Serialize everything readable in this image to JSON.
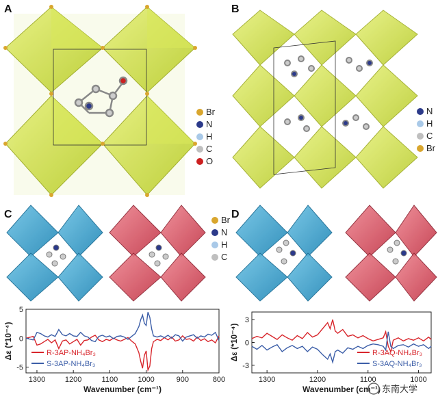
{
  "panels": {
    "A": {
      "label": "A",
      "legend": [
        "Br",
        "N",
        "H",
        "C",
        "O"
      ]
    },
    "B": {
      "label": "B",
      "legend": [
        "N",
        "H",
        "C",
        "Br"
      ]
    },
    "C": {
      "label": "C",
      "legend": [
        "Br",
        "N",
        "H",
        "C"
      ]
    },
    "D": {
      "label": "D"
    }
  },
  "colors": {
    "Br": "#d9a62e",
    "N": "#2c3a8a",
    "H": "#a9c9e8",
    "C": "#bfbfbf",
    "O": "#cc2020",
    "yellow_oct": "#cfe04a",
    "blue_oct": "#3aa3cf",
    "red_oct": "#d94a5a",
    "r_series": "#d8262c",
    "s_series": "#3c5ea8"
  },
  "watermark": "东南大学",
  "chart_data": [
    {
      "type": "line",
      "panel": "C",
      "xlabel": "Wavenumber (cm⁻¹)",
      "ylabel": "Δε (*10⁻⁴)",
      "xlim": [
        1330,
        800
      ],
      "ylim": [
        -6,
        5
      ],
      "xticks": [
        1300,
        1200,
        1100,
        1000,
        900,
        800
      ],
      "yticks": [
        5,
        0,
        -5
      ],
      "series": [
        {
          "name": "R-3AP-NH₄Br₃",
          "color": "#d8262c",
          "x": [
            1330,
            1310,
            1300,
            1290,
            1280,
            1270,
            1260,
            1250,
            1240,
            1230,
            1220,
            1210,
            1200,
            1190,
            1180,
            1170,
            1160,
            1150,
            1140,
            1130,
            1120,
            1110,
            1100,
            1090,
            1080,
            1070,
            1060,
            1050,
            1040,
            1030,
            1020,
            1015,
            1010,
            1005,
            1000,
            995,
            990,
            985,
            980,
            975,
            970,
            960,
            950,
            940,
            930,
            920,
            910,
            900,
            890,
            880,
            870,
            860,
            850,
            840,
            830,
            820,
            810,
            800
          ],
          "y": [
            0,
            0.3,
            -1.2,
            -1.0,
            -0.6,
            -0.2,
            -0.8,
            -0.3,
            -1.8,
            -0.5,
            -0.3,
            -1.0,
            -0.6,
            -0.2,
            -1.2,
            -0.4,
            -0.3,
            0.2,
            0.5,
            -0.3,
            -0.6,
            -0.2,
            -0.4,
            0.0,
            -0.3,
            -0.5,
            -0.2,
            0.1,
            -0.5,
            -1.0,
            -2.5,
            -4.0,
            -5.2,
            -3.0,
            -2.2,
            -5.5,
            -4.8,
            -1.8,
            -0.6,
            -0.4,
            -0.2,
            -0.4,
            0.1,
            -0.3,
            0.2,
            -0.5,
            -0.3,
            0.4,
            -0.2,
            -0.1,
            -0.5,
            0.2,
            -0.4,
            -0.1,
            -0.6,
            -0.3,
            -0.8,
            0.4
          ]
        },
        {
          "name": "S-3AP-NH₄Br₃",
          "color": "#3c5ea8",
          "x": [
            1330,
            1310,
            1300,
            1290,
            1280,
            1270,
            1260,
            1250,
            1240,
            1230,
            1220,
            1210,
            1200,
            1190,
            1180,
            1170,
            1160,
            1150,
            1140,
            1130,
            1120,
            1110,
            1100,
            1090,
            1080,
            1070,
            1060,
            1050,
            1040,
            1030,
            1020,
            1015,
            1010,
            1005,
            1000,
            995,
            990,
            985,
            980,
            975,
            970,
            960,
            950,
            940,
            930,
            920,
            910,
            900,
            890,
            880,
            870,
            860,
            850,
            840,
            830,
            820,
            810,
            800
          ],
          "y": [
            0,
            -0.3,
            1.0,
            0.8,
            0.4,
            0.2,
            0.6,
            0.3,
            1.5,
            0.6,
            0.4,
            0.8,
            0.4,
            0.3,
            1.0,
            0.4,
            0.2,
            -0.4,
            -0.6,
            0.3,
            0.5,
            0.2,
            0.4,
            -0.1,
            0.3,
            0.4,
            0.2,
            -0.2,
            0.3,
            0.8,
            2.0,
            3.2,
            4.0,
            2.6,
            2.2,
            4.5,
            3.6,
            1.6,
            0.4,
            0.3,
            0.2,
            0.4,
            0.1,
            0.5,
            0.0,
            0.6,
            0.4,
            -0.5,
            0.2,
            0.4,
            0.6,
            0.0,
            0.4,
            0.2,
            0.7,
            0.5,
            1.0,
            -0.4
          ]
        }
      ]
    },
    {
      "type": "line",
      "panel": "D",
      "xlabel": "Wavenumber (cm⁻¹)",
      "ylabel": "Δε (*10⁻⁴)",
      "xlim": [
        1330,
        975
      ],
      "ylim": [
        -4,
        4
      ],
      "xticks": [
        1300,
        1200,
        1100,
        1000
      ],
      "yticks": [
        3,
        0,
        -3
      ],
      "series": [
        {
          "name": "R-3AQ-NH₄Br₃",
          "color": "#d8262c",
          "x": [
            1330,
            1320,
            1310,
            1300,
            1290,
            1280,
            1270,
            1260,
            1250,
            1240,
            1230,
            1220,
            1210,
            1200,
            1190,
            1180,
            1175,
            1170,
            1165,
            1160,
            1150,
            1140,
            1130,
            1120,
            1110,
            1100,
            1090,
            1080,
            1070,
            1065,
            1060,
            1055,
            1050,
            1040,
            1030,
            1020,
            1010,
            1000,
            990,
            980,
            975
          ],
          "y": [
            0.5,
            0.8,
            0.6,
            1.2,
            0.8,
            0.4,
            1.0,
            0.6,
            0.3,
            0.9,
            0.5,
            1.3,
            0.7,
            1.0,
            1.8,
            2.6,
            1.8,
            3.0,
            1.5,
            1.2,
            1.7,
            0.8,
            1.0,
            0.6,
            0.9,
            0.5,
            0.2,
            0.4,
            0.6,
            1.4,
            -0.5,
            -1.2,
            0.3,
            0.6,
            0.2,
            0.5,
            0.3,
            0.6,
            0.2,
            0.7,
            0.4
          ]
        },
        {
          "name": "S-3AQ-NH₄Br₃",
          "color": "#3c5ea8",
          "x": [
            1330,
            1320,
            1310,
            1300,
            1290,
            1280,
            1270,
            1260,
            1250,
            1240,
            1230,
            1220,
            1210,
            1200,
            1190,
            1180,
            1175,
            1170,
            1165,
            1160,
            1150,
            1140,
            1130,
            1120,
            1110,
            1100,
            1090,
            1080,
            1070,
            1065,
            1060,
            1055,
            1050,
            1040,
            1030,
            1020,
            1010,
            1000,
            990,
            980,
            975
          ],
          "y": [
            -0.5,
            -0.9,
            -0.4,
            -1.0,
            -0.6,
            -0.3,
            -1.2,
            -0.7,
            -0.4,
            -0.8,
            -0.5,
            -1.2,
            -0.6,
            -0.9,
            -1.6,
            -2.2,
            -1.5,
            -2.6,
            -1.2,
            -1.0,
            -1.4,
            -0.7,
            -0.9,
            -0.5,
            -0.8,
            -0.4,
            -0.2,
            -0.3,
            -0.5,
            -1.0,
            1.4,
            -0.5,
            -0.8,
            -0.4,
            -0.3,
            -0.6,
            -0.2,
            -0.5,
            -0.3,
            -0.8,
            -0.5
          ]
        }
      ]
    }
  ]
}
